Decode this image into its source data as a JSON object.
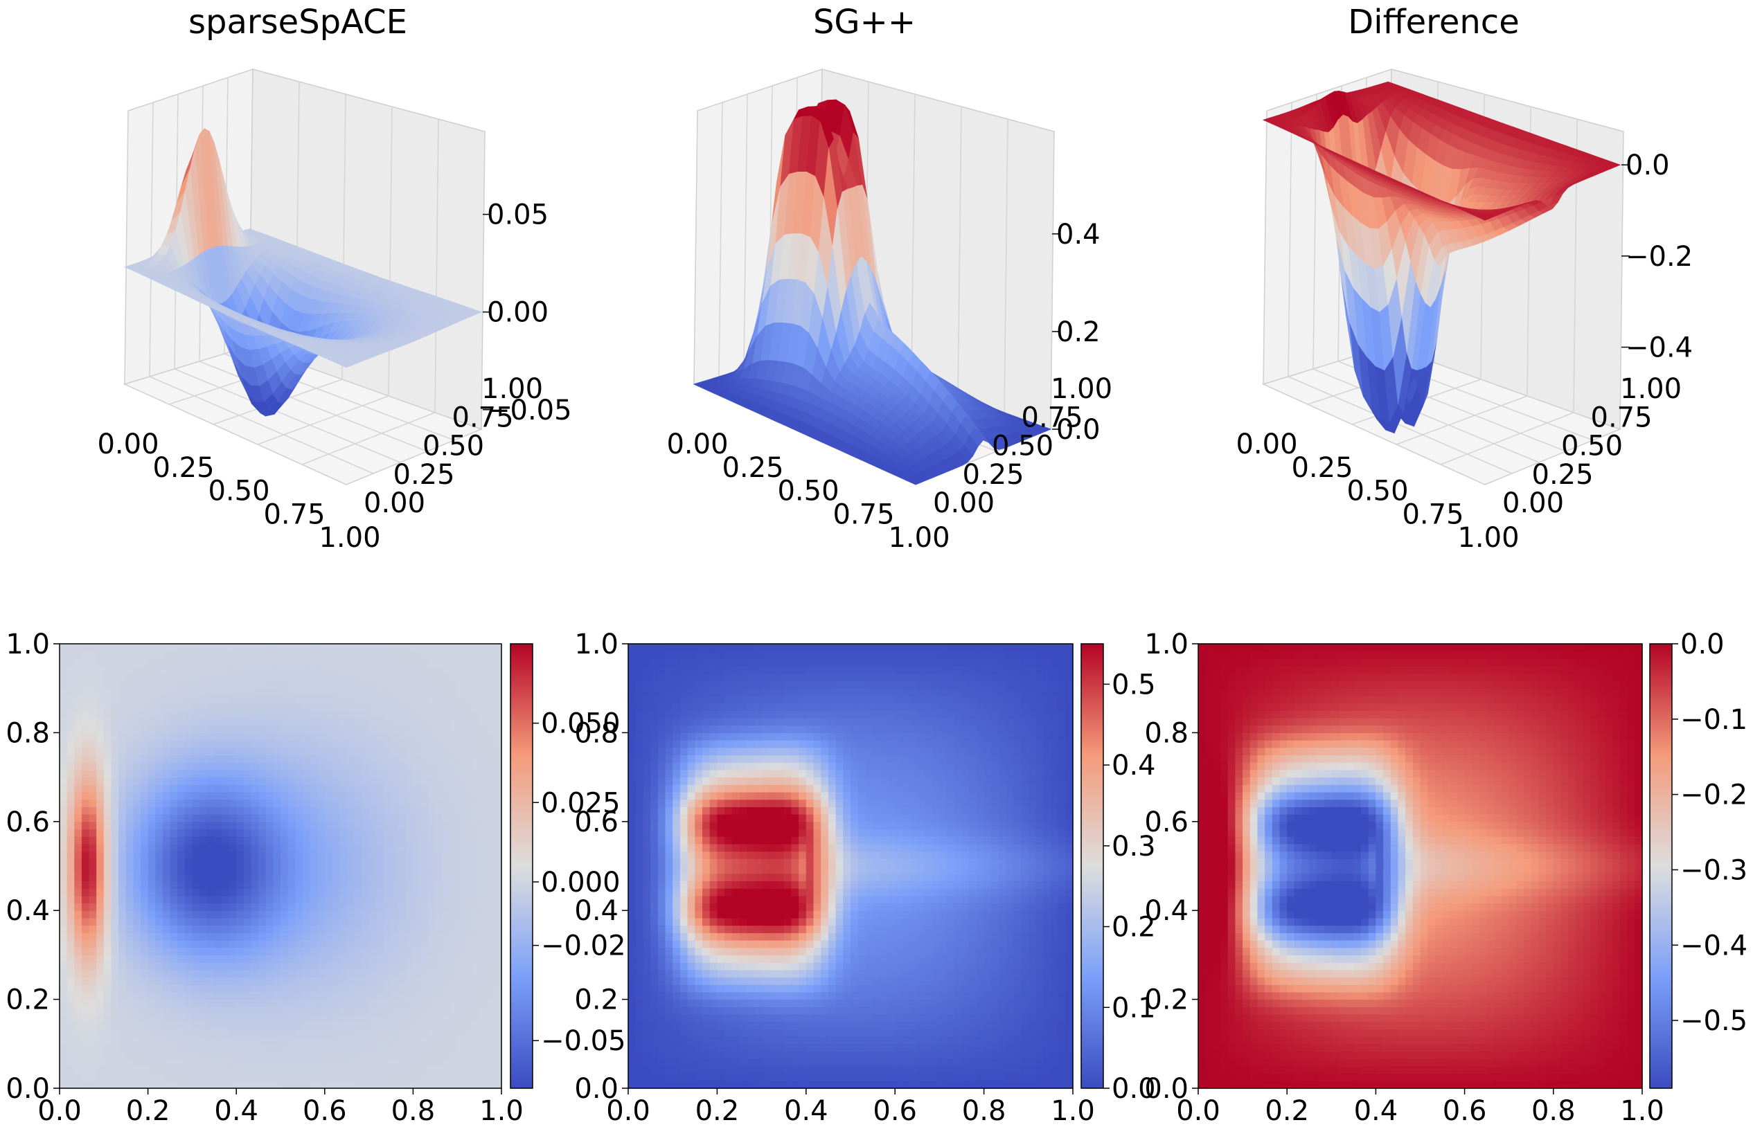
{
  "figure": {
    "colormap": "coolwarm",
    "colormap_stops": [
      "#3b4cc0",
      "#dddddd",
      "#b40426"
    ]
  },
  "chart_data": [
    {
      "type": "surface3d",
      "title": "sparseSpACE",
      "x_ticks": [
        "0.00",
        "0.25",
        "0.50",
        "0.75",
        "1.00"
      ],
      "y_ticks": [
        "0.00",
        "0.25",
        "0.50",
        "0.75",
        "1.00"
      ],
      "z_ticks": [
        "−0.05",
        "0.00",
        "0.05"
      ],
      "xlim": [
        0,
        1
      ],
      "ylim": [
        0,
        1
      ],
      "zlim": [
        -0.06,
        0.08
      ],
      "grid": true
    },
    {
      "type": "surface3d",
      "title": "SG++",
      "x_ticks": [
        "0.00",
        "0.25",
        "0.50",
        "0.75",
        "1.00"
      ],
      "y_ticks": [
        "0.00",
        "0.25",
        "0.50",
        "0.75",
        "1.00"
      ],
      "z_ticks": [
        "0.0",
        "0.2",
        "0.4"
      ],
      "xlim": [
        0,
        1
      ],
      "ylim": [
        0,
        1
      ],
      "zlim": [
        0,
        0.56
      ],
      "grid": true
    },
    {
      "type": "surface3d",
      "title": "Difference",
      "x_ticks": [
        "0.00",
        "0.25",
        "0.50",
        "0.75",
        "1.00"
      ],
      "y_ticks": [
        "0.00",
        "0.25",
        "0.50",
        "0.75",
        "1.00"
      ],
      "z_ticks": [
        "−0.4",
        "−0.2",
        "0.0"
      ],
      "xlim": [
        0,
        1
      ],
      "ylim": [
        0,
        1
      ],
      "zlim": [
        -0.58,
        0.02
      ],
      "grid": true
    },
    {
      "type": "heatmap",
      "x_ticks": [
        "0.0",
        "0.2",
        "0.4",
        "0.6",
        "0.8",
        "1.0"
      ],
      "y_ticks": [
        "0.0",
        "0.2",
        "0.4",
        "0.6",
        "0.8",
        "1.0"
      ],
      "colorbar_ticks": [
        "−0.05",
        "−0.02",
        "0.000",
        "0.025",
        "0.050"
      ],
      "value_range": [
        -0.065,
        0.075
      ],
      "xlim": [
        0,
        1
      ],
      "ylim": [
        0,
        1
      ]
    },
    {
      "type": "heatmap",
      "x_ticks": [
        "0.0",
        "0.2",
        "0.4",
        "0.6",
        "0.8",
        "1.0"
      ],
      "y_ticks": [
        "0.0",
        "0.2",
        "0.4",
        "0.6",
        "0.8",
        "1.0"
      ],
      "colorbar_ticks": [
        "0.0",
        "0.1",
        "0.2",
        "0.3",
        "0.4",
        "0.5"
      ],
      "value_range": [
        0.0,
        0.55
      ],
      "xlim": [
        0,
        1
      ],
      "ylim": [
        0,
        1
      ]
    },
    {
      "type": "heatmap",
      "x_ticks": [
        "0.0",
        "0.2",
        "0.4",
        "0.6",
        "0.8",
        "1.0"
      ],
      "y_ticks": [
        "0.0",
        "0.2",
        "0.4",
        "0.6",
        "0.8",
        "1.0"
      ],
      "colorbar_ticks": [
        "−0.5",
        "−0.4",
        "−0.3",
        "−0.2",
        "−0.1",
        "0.0"
      ],
      "value_range": [
        -0.59,
        0.0
      ],
      "xlim": [
        0,
        1
      ],
      "ylim": [
        0,
        1
      ]
    }
  ]
}
